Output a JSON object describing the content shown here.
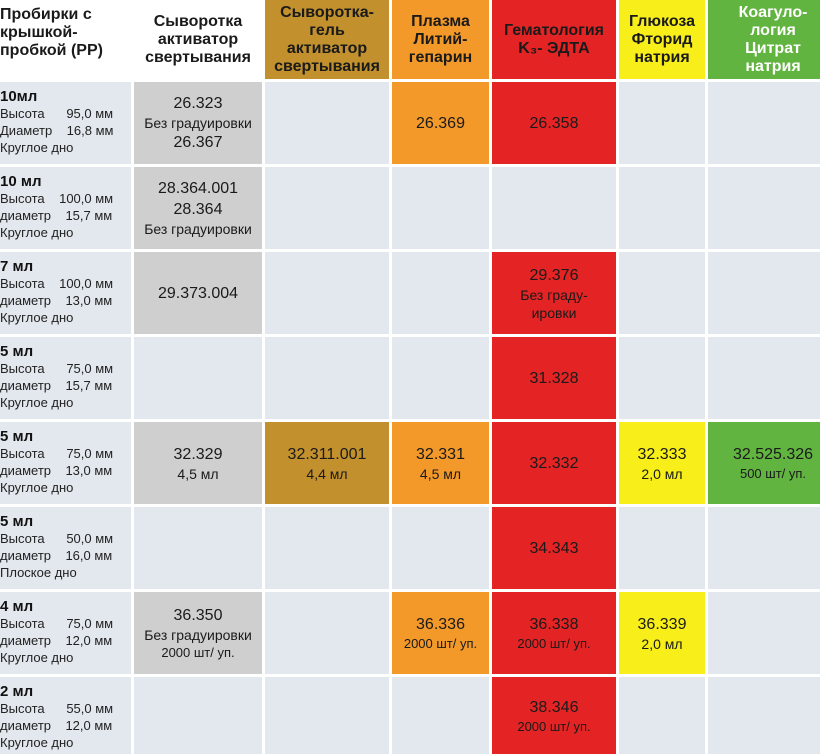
{
  "header": {
    "corner": [
      "Пробирки с",
      "крышкой-",
      "пробкой (PP)"
    ],
    "serum": [
      "Сыворотка",
      "активатор",
      "свертывания"
    ],
    "gel": [
      "Сыворотка-",
      "гель",
      "активатор",
      "свертывания"
    ],
    "plasma": [
      "Плазма",
      "Литий-",
      "гепарин"
    ],
    "hema": [
      "Гематология",
      "K₃- ЭДТА"
    ],
    "gluc": [
      "Глюкоза",
      "Фторид",
      "натрия"
    ],
    "coag": [
      "Коагуло-",
      "логия",
      "Цитрат",
      "натрия"
    ]
  },
  "rows": [
    {
      "volume": "10мл",
      "specs": [
        "Высота      95,0 мм",
        "Диаметр    16,8 мм",
        "Круглое дно"
      ],
      "serum": [
        "26.323",
        "Без градуировки",
        "26.367"
      ],
      "gel": [],
      "plasma": [
        "26.369"
      ],
      "hema": [
        "26.358"
      ],
      "gluc": [],
      "coag": []
    },
    {
      "volume": "10 мл",
      "specs": [
        "Высота    100,0 мм",
        "диаметр    15,7 мм",
        "Круглое дно"
      ],
      "serum": [
        "28.364.001",
        "28.364",
        "Без градуировки"
      ],
      "gel": [],
      "plasma": [],
      "hema": [],
      "gluc": [],
      "coag": []
    },
    {
      "volume": "7 мл",
      "specs": [
        "Высота    100,0 мм",
        "диаметр    13,0 мм",
        "Круглое дно"
      ],
      "serum": [
        "29.373.004"
      ],
      "gel": [],
      "plasma": [],
      "hema": [
        "29.376",
        "Без граду-",
        "ировки"
      ],
      "gluc": [],
      "coag": []
    },
    {
      "volume": "5 мл",
      "specs": [
        "Высота      75,0 мм",
        "диаметр    15,7 мм",
        "Круглое дно"
      ],
      "serum": [],
      "gel": [],
      "plasma": [],
      "hema": [
        "31.328"
      ],
      "gluc": [],
      "coag": []
    },
    {
      "volume": "5 мл",
      "specs": [
        "Высота      75,0 мм",
        "диаметр    13,0 мм",
        "Круглое дно"
      ],
      "serum": [
        "32.329",
        "4,5 мл"
      ],
      "gel": [
        "32.311.001",
        "4,4 мл"
      ],
      "plasma": [
        "32.331",
        "4,5 мл"
      ],
      "hema": [
        "32.332"
      ],
      "gluc": [
        "32.333",
        "2,0 мл"
      ],
      "coag": [
        "32.525.326",
        "500 шт/ уп."
      ]
    },
    {
      "volume": "5 мл",
      "specs": [
        "Высота      50,0 мм",
        "диаметр    16,0 мм",
        "Плоское дно"
      ],
      "serum": [],
      "gel": [],
      "plasma": [],
      "hema": [
        "34.343"
      ],
      "gluc": [],
      "coag": []
    },
    {
      "volume": "4 мл",
      "specs": [
        "Высота      75,0 мм",
        "диаметр    12,0 мм",
        "Круглое дно"
      ],
      "serum": [
        "36.350",
        "Без градуировки",
        "2000 шт/ уп."
      ],
      "gel": [],
      "plasma": [
        "36.336",
        "2000 шт/ уп."
      ],
      "hema": [
        "36.338",
        "2000 шт/ уп."
      ],
      "gluc": [
        "36.339",
        "2,0 мл"
      ],
      "coag": []
    },
    {
      "volume": "2 мл",
      "specs": [
        "Высота      55,0 мм",
        "диаметр    12,0 мм",
        "Круглое дно"
      ],
      "serum": [],
      "gel": [],
      "plasma": [],
      "hema": [
        "38.346",
        "2000 шт/ уп."
      ],
      "gluc": [],
      "coag": []
    }
  ],
  "colors": {
    "row_bg": "#e3e8ee",
    "serum": "#cfcfcf",
    "gel": "#c2902d",
    "plasma": "#f2992a",
    "hema": "#e42424",
    "gluc": "#f7ee1a",
    "coag": "#62b441"
  }
}
